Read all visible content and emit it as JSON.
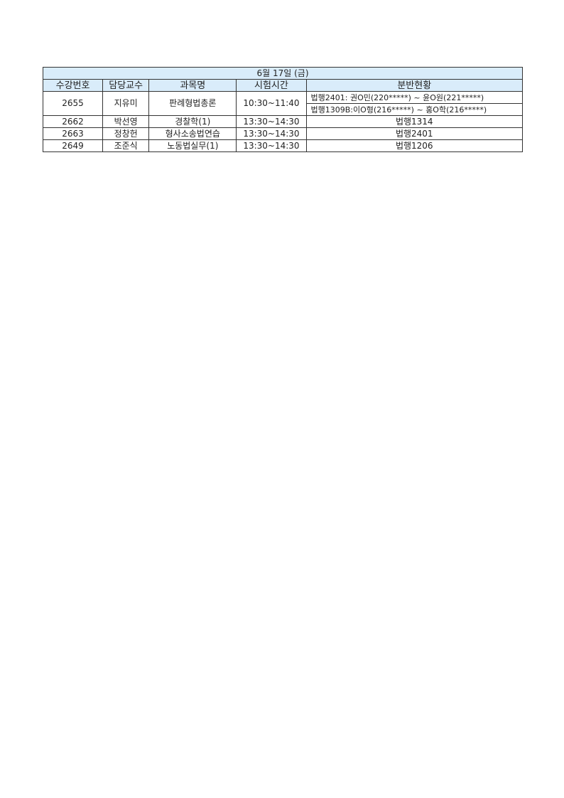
{
  "title": "6월 17일 (금)",
  "header_color": "#d9ecfa",
  "columns": [
    "수강번호",
    "담당교수",
    "과목명",
    "시험시간",
    "분반현황"
  ],
  "rows": [
    {
      "id": "2655",
      "prof": "지유미",
      "course": "판례형법총론",
      "time": "10:30~11:40",
      "sections": [
        "법행2401: 권O민(220*****) ~ 윤O원(221*****)",
        "법행1309B:이O형(216*****) ~ 홍O학(216*****)"
      ]
    },
    {
      "id": "2662",
      "prof": "박선영",
      "course": "경찰학(1)",
      "time": "13:30~14:30",
      "sections": [
        "법행1314"
      ]
    },
    {
      "id": "2663",
      "prof": "정창헌",
      "course": "형사소송법연습",
      "time": "13:30~14:30",
      "sections": [
        "법행2401"
      ]
    },
    {
      "id": "2649",
      "prof": "조준식",
      "course": "노동법실무(1)",
      "time": "13:30~14:30",
      "sections": [
        "법행1206"
      ]
    }
  ]
}
